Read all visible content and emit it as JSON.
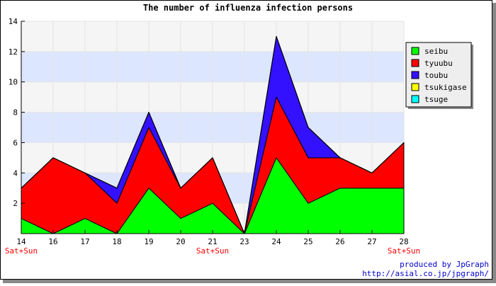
{
  "chart_data": {
    "type": "stacked-area",
    "title": "The number of influenza infection persons",
    "categories": [
      "14",
      "16",
      "17",
      "18",
      "19",
      "20",
      "21",
      "23",
      "24",
      "25",
      "26",
      "27",
      "28"
    ],
    "x_sublabels": [
      "Sat+Sun",
      null,
      null,
      null,
      null,
      null,
      "Sat+Sun",
      null,
      null,
      null,
      null,
      null,
      "Sat+Sun"
    ],
    "series": [
      {
        "name": "seibu",
        "color": "#00ff00",
        "values": [
          1,
          0,
          1,
          0,
          3,
          1,
          2,
          0,
          5,
          2,
          3,
          3,
          3
        ]
      },
      {
        "name": "tyuubu",
        "color": "#ff0000",
        "values": [
          2,
          5,
          3,
          2,
          4,
          2,
          3,
          0,
          4,
          3,
          2,
          1,
          3
        ]
      },
      {
        "name": "toubu",
        "color": "#3311ff",
        "values": [
          0,
          0,
          0,
          1,
          1,
          0,
          0,
          0,
          4,
          2,
          0,
          0,
          0
        ]
      },
      {
        "name": "tsukigase",
        "color": "#ffff00",
        "values": [
          0,
          0,
          0,
          0,
          0,
          0,
          0,
          0,
          0,
          0,
          0,
          0,
          0
        ]
      },
      {
        "name": "tsuge",
        "color": "#00ffff",
        "values": [
          0,
          0,
          0,
          0,
          0,
          0,
          0,
          0,
          0,
          0,
          0,
          0,
          0
        ]
      }
    ],
    "ylim": [
      0,
      14
    ],
    "yticks": [
      2,
      4,
      6,
      8,
      10,
      12,
      14
    ],
    "grid": true,
    "legend": "right",
    "footer": [
      "produced by JpGraph",
      "http://asial.co.jp/jpgraph/"
    ]
  }
}
